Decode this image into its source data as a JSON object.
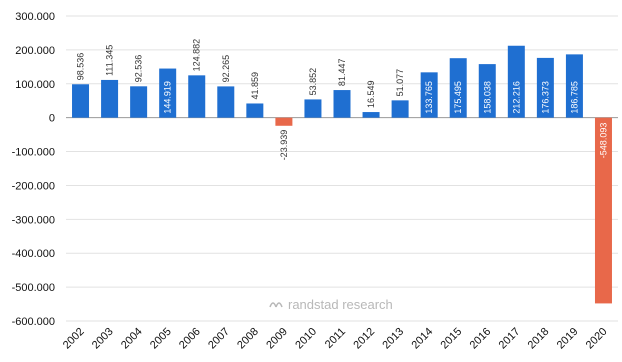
{
  "chart_data": {
    "type": "bar",
    "categories": [
      "2002",
      "2003",
      "2004",
      "2005",
      "2006",
      "2007",
      "2008",
      "2009",
      "2010",
      "2011",
      "2012",
      "2013",
      "2014",
      "2015",
      "2016",
      "2017",
      "2018",
      "2019",
      "2020"
    ],
    "values": [
      98536,
      111345,
      92536,
      144919,
      124882,
      92265,
      41859,
      -23939,
      53852,
      81447,
      16549,
      51077,
      133765,
      175495,
      158038,
      212216,
      176373,
      186785,
      -548093
    ],
    "data_labels": [
      "98.536",
      "111.345",
      "92.536",
      "144.919",
      "124.882",
      "92.265",
      "41.859",
      "-23.939",
      "53.852",
      "81.447",
      "16.549",
      "51.077",
      "133.765",
      "175.495",
      "158.038",
      "212.216",
      "176.373",
      "186.785",
      "-548.093"
    ],
    "title": "",
    "xlabel": "",
    "ylabel": "",
    "ylim": [
      -600000,
      300000
    ],
    "yticks": [
      -600000,
      -500000,
      -400000,
      -300000,
      -200000,
      -100000,
      0,
      100000,
      200000,
      300000
    ],
    "ytick_labels": [
      "-600.000",
      "-500.000",
      "-400.000",
      "-300.000",
      "-200.000",
      "-100.000",
      "0",
      "100.000",
      "200.000",
      "300.000"
    ],
    "grid": true,
    "colors": {
      "positive": "#1f6fd1",
      "negative": "#e8684a",
      "grid": "#e2e2e2",
      "axis": "#999999"
    }
  },
  "watermark": {
    "text": "randstad research",
    "icon": "randstad-logo-icon"
  }
}
